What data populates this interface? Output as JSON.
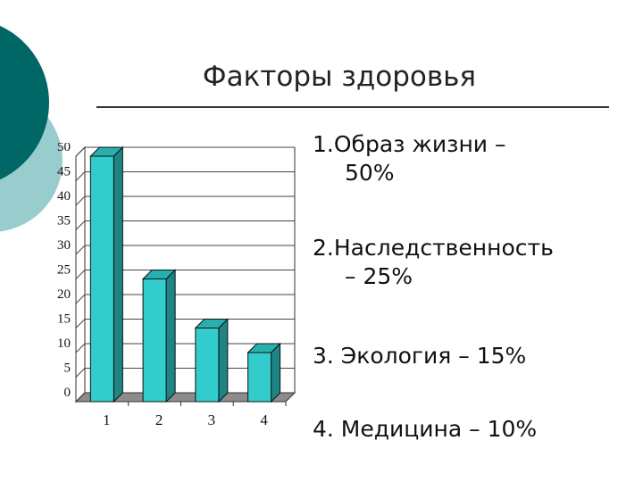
{
  "slide": {
    "title": "Факторы здоровья",
    "factors": [
      {
        "line1": "1.Образ жизни –",
        "line2": "50%"
      },
      {
        "line1": "2.Наследственность",
        "line2": "– 25%"
      },
      {
        "line1": "3. Экология – 15%",
        "line2": ""
      },
      {
        "line1": "4. Медицина – 10%",
        "line2": ""
      }
    ]
  },
  "colors": {
    "bar_face": "#33CCCC",
    "bar_side": "#1E8585",
    "bar_top": "#2AAFAF",
    "deco_dark": "#006666",
    "deco_light": "#99CCCC",
    "floor": "#8C8C8C"
  },
  "chart_data": {
    "type": "bar",
    "categories": [
      "1",
      "2",
      "3",
      "4"
    ],
    "values": [
      50,
      25,
      15,
      10
    ],
    "ylim": [
      0,
      50
    ],
    "yticks": [
      0,
      5,
      10,
      15,
      20,
      25,
      30,
      35,
      40,
      45,
      50
    ],
    "grid": true,
    "legend": "none",
    "title": "",
    "xlabel": "",
    "ylabel": ""
  }
}
